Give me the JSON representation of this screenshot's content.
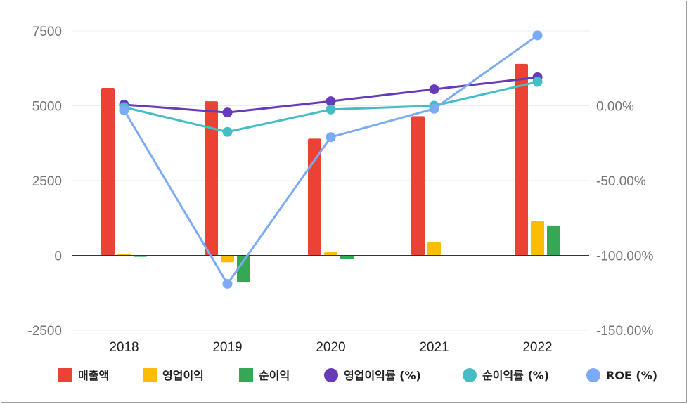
{
  "chart_data": {
    "type": "bar",
    "categories": [
      "2018",
      "2019",
      "2020",
      "2021",
      "2022"
    ],
    "y_left": {
      "ticks": [
        "7500",
        "5000",
        "2500",
        "0",
        "-2500"
      ],
      "range": [
        -2500,
        7500
      ]
    },
    "y_right": {
      "ticks": [
        "0.00%",
        "-50.00%",
        "-100.00%",
        "-150.00%"
      ],
      "range": [
        -150,
        50
      ]
    },
    "grid": true,
    "legend_position": "bottom",
    "bar_series": [
      {
        "name": "매출액",
        "color": "#ea4335",
        "values": [
          5600,
          5150,
          3900,
          4650,
          6400
        ]
      },
      {
        "name": "영업이익",
        "color": "#fbbc04",
        "values": [
          40,
          -230,
          110,
          450,
          1150
        ]
      },
      {
        "name": "순이익",
        "color": "#34a853",
        "values": [
          -50,
          -900,
          -130,
          10,
          1000
        ]
      }
    ],
    "line_series": [
      {
        "name": "영업이익률 (%)",
        "color": "#673ab7",
        "values": [
          0.7,
          -4.5,
          3.0,
          11.0,
          19.0
        ]
      },
      {
        "name": "순이익률 (%)",
        "color": "#46bdc6",
        "values": [
          -1.0,
          -17.5,
          -2.5,
          0,
          16.0
        ]
      },
      {
        "name": "ROE (%)",
        "color": "#7baaf7",
        "values": [
          -3.0,
          -119.0,
          -21.0,
          -2.0,
          47.0
        ]
      }
    ]
  }
}
